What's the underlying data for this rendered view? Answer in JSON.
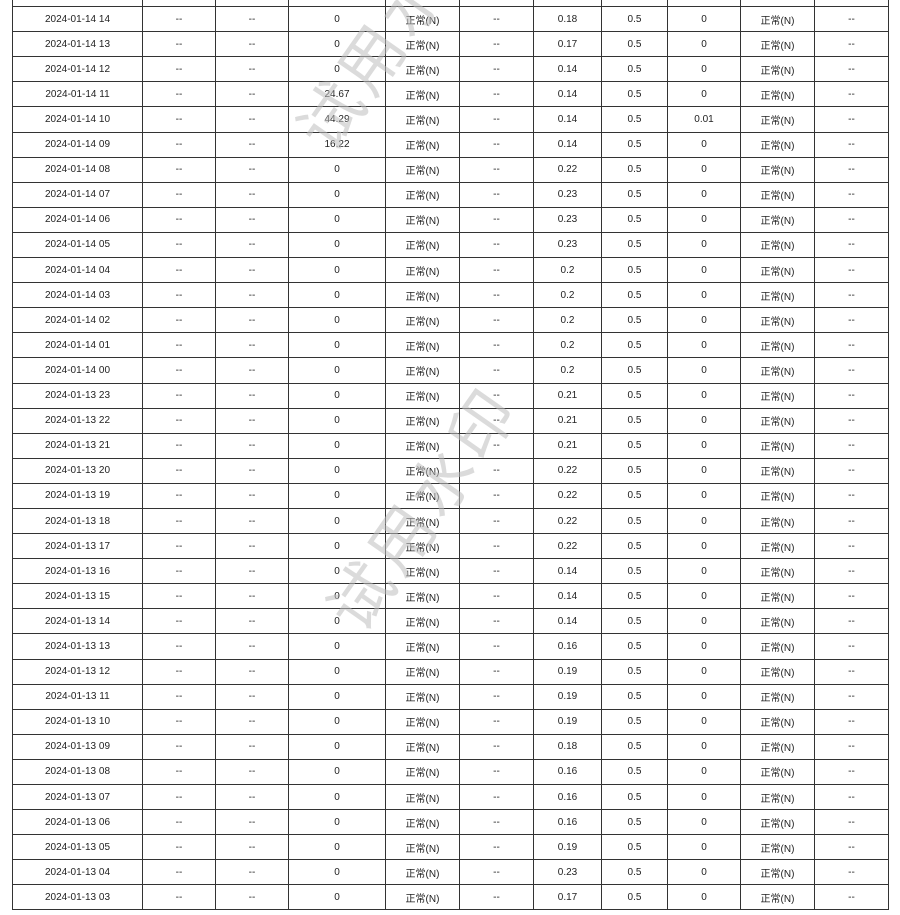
{
  "watermark": "试用水印",
  "placeholder": "--",
  "limit": "0.5",
  "status": "正常(N)",
  "rows": [
    {
      "time": "2024-01-14 14",
      "v1": "0",
      "v2": "0.18",
      "v3": "0"
    },
    {
      "time": "2024-01-14 13",
      "v1": "0",
      "v2": "0.17",
      "v3": "0"
    },
    {
      "time": "2024-01-14 12",
      "v1": "0",
      "v2": "0.14",
      "v3": "0"
    },
    {
      "time": "2024-01-14 11",
      "v1": "24.67",
      "v2": "0.14",
      "v3": "0"
    },
    {
      "time": "2024-01-14 10",
      "v1": "44.29",
      "v2": "0.14",
      "v3": "0.01"
    },
    {
      "time": "2024-01-14 09",
      "v1": "16.22",
      "v2": "0.14",
      "v3": "0"
    },
    {
      "time": "2024-01-14 08",
      "v1": "0",
      "v2": "0.22",
      "v3": "0"
    },
    {
      "time": "2024-01-14 07",
      "v1": "0",
      "v2": "0.23",
      "v3": "0"
    },
    {
      "time": "2024-01-14 06",
      "v1": "0",
      "v2": "0.23",
      "v3": "0"
    },
    {
      "time": "2024-01-14 05",
      "v1": "0",
      "v2": "0.23",
      "v3": "0"
    },
    {
      "time": "2024-01-14 04",
      "v1": "0",
      "v2": "0.2",
      "v3": "0"
    },
    {
      "time": "2024-01-14 03",
      "v1": "0",
      "v2": "0.2",
      "v3": "0"
    },
    {
      "time": "2024-01-14 02",
      "v1": "0",
      "v2": "0.2",
      "v3": "0"
    },
    {
      "time": "2024-01-14 01",
      "v1": "0",
      "v2": "0.2",
      "v3": "0"
    },
    {
      "time": "2024-01-14 00",
      "v1": "0",
      "v2": "0.2",
      "v3": "0"
    },
    {
      "time": "2024-01-13 23",
      "v1": "0",
      "v2": "0.21",
      "v3": "0"
    },
    {
      "time": "2024-01-13 22",
      "v1": "0",
      "v2": "0.21",
      "v3": "0"
    },
    {
      "time": "2024-01-13 21",
      "v1": "0",
      "v2": "0.21",
      "v3": "0"
    },
    {
      "time": "2024-01-13 20",
      "v1": "0",
      "v2": "0.22",
      "v3": "0"
    },
    {
      "time": "2024-01-13 19",
      "v1": "0",
      "v2": "0.22",
      "v3": "0"
    },
    {
      "time": "2024-01-13 18",
      "v1": "0",
      "v2": "0.22",
      "v3": "0"
    },
    {
      "time": "2024-01-13 17",
      "v1": "0",
      "v2": "0.22",
      "v3": "0"
    },
    {
      "time": "2024-01-13 16",
      "v1": "0",
      "v2": "0.14",
      "v3": "0"
    },
    {
      "time": "2024-01-13 15",
      "v1": "0",
      "v2": "0.14",
      "v3": "0"
    },
    {
      "time": "2024-01-13 14",
      "v1": "0",
      "v2": "0.14",
      "v3": "0"
    },
    {
      "time": "2024-01-13 13",
      "v1": "0",
      "v2": "0.16",
      "v3": "0"
    },
    {
      "time": "2024-01-13 12",
      "v1": "0",
      "v2": "0.19",
      "v3": "0"
    },
    {
      "time": "2024-01-13 11",
      "v1": "0",
      "v2": "0.19",
      "v3": "0"
    },
    {
      "time": "2024-01-13 10",
      "v1": "0",
      "v2": "0.19",
      "v3": "0"
    },
    {
      "time": "2024-01-13 09",
      "v1": "0",
      "v2": "0.18",
      "v3": "0"
    },
    {
      "time": "2024-01-13 08",
      "v1": "0",
      "v2": "0.16",
      "v3": "0"
    },
    {
      "time": "2024-01-13 07",
      "v1": "0",
      "v2": "0.16",
      "v3": "0"
    },
    {
      "time": "2024-01-13 06",
      "v1": "0",
      "v2": "0.16",
      "v3": "0"
    },
    {
      "time": "2024-01-13 05",
      "v1": "0",
      "v2": "0.19",
      "v3": "0"
    },
    {
      "time": "2024-01-13 04",
      "v1": "0",
      "v2": "0.23",
      "v3": "0"
    },
    {
      "time": "2024-01-13 03",
      "v1": "0",
      "v2": "0.17",
      "v3": "0"
    }
  ]
}
